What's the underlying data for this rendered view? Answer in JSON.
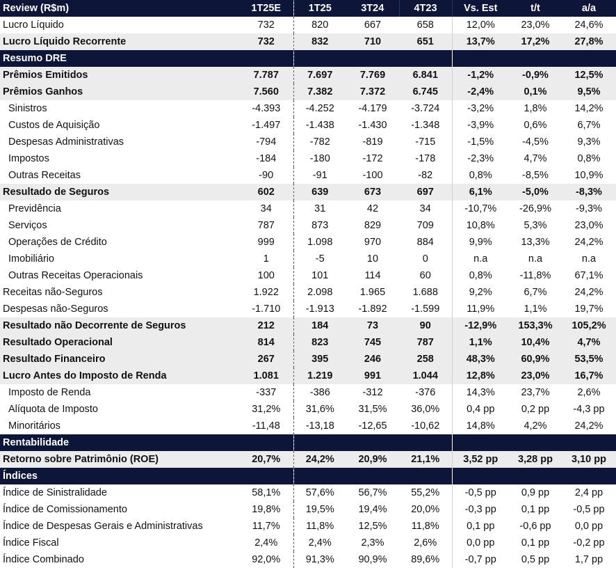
{
  "header": {
    "label": "Review (R$m)",
    "cols": [
      "1T25E",
      "1T25",
      "3T24",
      "4T23",
      "Vs. Est",
      "t/t",
      "a/a"
    ]
  },
  "rows": [
    {
      "type": "row",
      "label": "Lucro Líquido",
      "values": [
        "732",
        "820",
        "667",
        "658",
        "12,0%",
        "23,0%",
        "24,6%"
      ]
    },
    {
      "type": "row",
      "label": "Lucro Líquido Recorrente",
      "bold": true,
      "shaded": true,
      "values": [
        "732",
        "832",
        "710",
        "651",
        "13,7%",
        "17,2%",
        "27,8%"
      ]
    },
    {
      "type": "section",
      "label": "Resumo DRE"
    },
    {
      "type": "row",
      "label": "Prêmios Emitidos",
      "bold": true,
      "shaded": true,
      "values": [
        "7.787",
        "7.697",
        "7.769",
        "6.841",
        "-1,2%",
        "-0,9%",
        "12,5%"
      ]
    },
    {
      "type": "row",
      "label": "Prêmios Ganhos",
      "bold": true,
      "shaded": true,
      "values": [
        "7.560",
        "7.382",
        "7.372",
        "6.745",
        "-2,4%",
        "0,1%",
        "9,5%"
      ]
    },
    {
      "type": "row",
      "label": "Sinistros",
      "indent": true,
      "values": [
        "-4.393",
        "-4.252",
        "-4.179",
        "-3.724",
        "-3,2%",
        "1,8%",
        "14,2%"
      ]
    },
    {
      "type": "row",
      "label": "Custos de Aquisição",
      "indent": true,
      "values": [
        "-1.497",
        "-1.438",
        "-1.430",
        "-1.348",
        "-3,9%",
        "0,6%",
        "6,7%"
      ]
    },
    {
      "type": "row",
      "label": "Despesas Administrativas",
      "indent": true,
      "values": [
        "-794",
        "-782",
        "-819",
        "-715",
        "-1,5%",
        "-4,5%",
        "9,3%"
      ]
    },
    {
      "type": "row",
      "label": "Impostos",
      "indent": true,
      "values": [
        "-184",
        "-180",
        "-172",
        "-178",
        "-2,3%",
        "4,7%",
        "0,8%"
      ]
    },
    {
      "type": "row",
      "label": "Outras Receitas",
      "indent": true,
      "values": [
        "-90",
        "-91",
        "-100",
        "-82",
        "0,8%",
        "-8,5%",
        "10,9%"
      ]
    },
    {
      "type": "row",
      "label": "Resultado de Seguros",
      "bold": true,
      "shaded": true,
      "values": [
        "602",
        "639",
        "673",
        "697",
        "6,1%",
        "-5,0%",
        "-8,3%"
      ]
    },
    {
      "type": "row",
      "label": "Previdência",
      "indent": true,
      "values": [
        "34",
        "31",
        "42",
        "34",
        "-10,7%",
        "-26,9%",
        "-9,3%"
      ]
    },
    {
      "type": "row",
      "label": "Serviços",
      "indent": true,
      "values": [
        "787",
        "873",
        "829",
        "709",
        "10,8%",
        "5,3%",
        "23,0%"
      ]
    },
    {
      "type": "row",
      "label": "Operações de Crédito",
      "indent": true,
      "values": [
        "999",
        "1.098",
        "970",
        "884",
        "9,9%",
        "13,3%",
        "24,2%"
      ]
    },
    {
      "type": "row",
      "label": "Imobiliário",
      "indent": true,
      "values": [
        "1",
        "-5",
        "10",
        "0",
        "n.a",
        "n.a",
        "n.a"
      ]
    },
    {
      "type": "row",
      "label": "Outras Receitas Operacionais",
      "indent": true,
      "values": [
        "100",
        "101",
        "114",
        "60",
        "0,8%",
        "-11,8%",
        "67,1%"
      ]
    },
    {
      "type": "row",
      "label": "Receitas não-Seguros",
      "values": [
        "1.922",
        "2.098",
        "1.965",
        "1.688",
        "9,2%",
        "6,7%",
        "24,2%"
      ]
    },
    {
      "type": "row",
      "label": "Despesas não-Seguros",
      "values": [
        "-1.710",
        "-1.913",
        "-1.892",
        "-1.599",
        "11,9%",
        "1,1%",
        "19,7%"
      ]
    },
    {
      "type": "row",
      "label": "Resultado não Decorrente de Seguros",
      "bold": true,
      "shaded": true,
      "values": [
        "212",
        "184",
        "73",
        "90",
        "-12,9%",
        "153,3%",
        "105,2%"
      ]
    },
    {
      "type": "row",
      "label": "Resultado Operacional",
      "bold": true,
      "shaded": true,
      "values": [
        "814",
        "823",
        "745",
        "787",
        "1,1%",
        "10,4%",
        "4,7%"
      ]
    },
    {
      "type": "row",
      "label": "Resultado Financeiro",
      "bold": true,
      "shaded": true,
      "values": [
        "267",
        "395",
        "246",
        "258",
        "48,3%",
        "60,9%",
        "53,5%"
      ]
    },
    {
      "type": "row",
      "label": "Lucro Antes do Imposto de Renda",
      "bold": true,
      "shaded": true,
      "values": [
        "1.081",
        "1.219",
        "991",
        "1.044",
        "12,8%",
        "23,0%",
        "16,7%"
      ]
    },
    {
      "type": "row",
      "label": "Imposto de Renda",
      "indent": true,
      "values": [
        "-337",
        "-386",
        "-312",
        "-376",
        "14,3%",
        "23,7%",
        "2,6%"
      ]
    },
    {
      "type": "row",
      "label": "Alíquota de Imposto",
      "indent": true,
      "values": [
        "31,2%",
        "31,6%",
        "31,5%",
        "36,0%",
        "0,4 pp",
        "0,2 pp",
        "-4,3 pp"
      ]
    },
    {
      "type": "row",
      "label": "Minoritários",
      "indent": true,
      "values": [
        "-11,48",
        "-13,18",
        "-12,65",
        "-10,62",
        "14,8%",
        "4,2%",
        "24,2%"
      ]
    },
    {
      "type": "section",
      "label": "Rentabilidade"
    },
    {
      "type": "row",
      "label": "Retorno sobre Patrimônio (ROE)",
      "bold": true,
      "shaded": true,
      "values": [
        "20,7%",
        "24,2%",
        "20,9%",
        "21,1%",
        "3,52 pp",
        "3,28 pp",
        "3,10 pp"
      ]
    },
    {
      "type": "section",
      "label": "Índices"
    },
    {
      "type": "row",
      "label": "Índice de Sinistralidade",
      "values": [
        "58,1%",
        "57,6%",
        "56,7%",
        "55,2%",
        "-0,5 pp",
        "0,9 pp",
        "2,4 pp"
      ]
    },
    {
      "type": "row",
      "label": "Índice de Comissionamento",
      "values": [
        "19,8%",
        "19,5%",
        "19,4%",
        "20,0%",
        "-0,3 pp",
        "0,1 pp",
        "-0,5 pp"
      ]
    },
    {
      "type": "row",
      "label": "Índice de Despesas Gerais e Administrativas",
      "values": [
        "11,7%",
        "11,8%",
        "12,5%",
        "11,8%",
        "0,1 pp",
        "-0,6 pp",
        "0,0 pp"
      ]
    },
    {
      "type": "row",
      "label": "Índice Fiscal",
      "values": [
        "2,4%",
        "2,4%",
        "2,3%",
        "2,6%",
        "0,0 pp",
        "0,1 pp",
        "-0,2 pp"
      ]
    },
    {
      "type": "row",
      "label": "Índice Combinado",
      "values": [
        "92,0%",
        "91,3%",
        "90,9%",
        "89,6%",
        "-0,7 pp",
        "0,5 pp",
        "1,7 pp"
      ]
    }
  ]
}
